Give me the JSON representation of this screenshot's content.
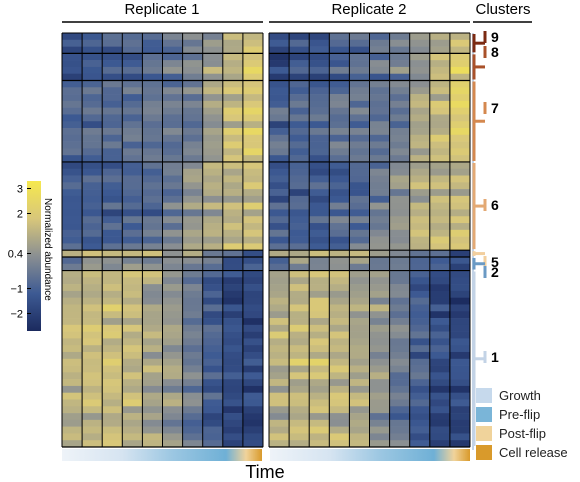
{
  "chart_data": {
    "type": "heatmap",
    "title": "",
    "xlabel": "Time",
    "ylabel": "",
    "replicates": [
      "Replicate 1",
      "Replicate 2"
    ],
    "columns_per_replicate": 10,
    "colorbar": {
      "label": "Normalized abundance",
      "ticks": [
        "3",
        "2",
        "0.4",
        "−1",
        "−2"
      ],
      "tick_values": [
        3,
        2,
        0.4,
        -1,
        -2
      ],
      "range": [
        -2.7,
        3.3
      ],
      "colors": [
        "#1b2a5e",
        "#3d5a93",
        "#8a8f92",
        "#d8c77a",
        "#f6e84e"
      ]
    },
    "clusters_header": "Clusters",
    "clusters": [
      {
        "id": "9",
        "label": "9",
        "rows": 3,
        "color": "#7b2a12",
        "profile": [
          -1.6,
          -1.4,
          -1.2,
          -1.0,
          -0.8,
          -0.5,
          -0.2,
          0.3,
          0.9,
          1.6
        ]
      },
      {
        "id": "8",
        "label": "8",
        "rows": 4,
        "color": "#a9512a",
        "profile": [
          -1.5,
          -1.3,
          -1.1,
          -0.9,
          -0.6,
          -0.3,
          0.1,
          0.7,
          1.5,
          2.2
        ]
      },
      {
        "id": "7",
        "label": "7",
        "rows": 12,
        "color": "#d4884f",
        "profile": [
          -0.9,
          -0.8,
          -0.7,
          -0.6,
          -0.5,
          -0.4,
          -0.1,
          0.8,
          1.4,
          1.9
        ]
      },
      {
        "id": "6",
        "label": "6",
        "rows": 13,
        "color": "#e3a974",
        "profile": [
          -1.2,
          -1.1,
          -1.0,
          -0.9,
          -0.7,
          -0.3,
          0.4,
          1.0,
          1.3,
          1.5
        ]
      },
      {
        "id": "5",
        "label": "5",
        "rows": 1,
        "color": "#f2cf9e",
        "profile": [
          1.1,
          1.2,
          1.2,
          1.0,
          1.3,
          0.6,
          0.3,
          -0.3,
          -1.3,
          -1.8
        ]
      },
      {
        "id": "2",
        "label": "2",
        "rows": 2,
        "color": "#6b9ac4",
        "profile": [
          -0.5,
          0.4,
          0.3,
          0.3,
          0.2,
          0.1,
          -0.2,
          -0.6,
          -1.2,
          -1.4
        ]
      },
      {
        "id": "1",
        "label": "1",
        "rows": 26,
        "color": "#c3d3e6",
        "profile": [
          1.1,
          1.3,
          1.4,
          1.2,
          0.9,
          0.4,
          -0.3,
          -1.2,
          -1.7,
          -1.9
        ]
      }
    ],
    "time_phases": [
      {
        "name": "Growth",
        "color": "#c6d9ec"
      },
      {
        "name": "Pre-flip",
        "color": "#7ab5d8"
      },
      {
        "name": "Post-flip",
        "color": "#f0d39b"
      },
      {
        "name": "Cell release",
        "color": "#d99a2b"
      }
    ],
    "time_bar_stops": [
      "#eef3f8",
      "#d6e4f1",
      "#9cc7e2",
      "#6fb0d6",
      "#f0d39b",
      "#d99a2b"
    ]
  }
}
